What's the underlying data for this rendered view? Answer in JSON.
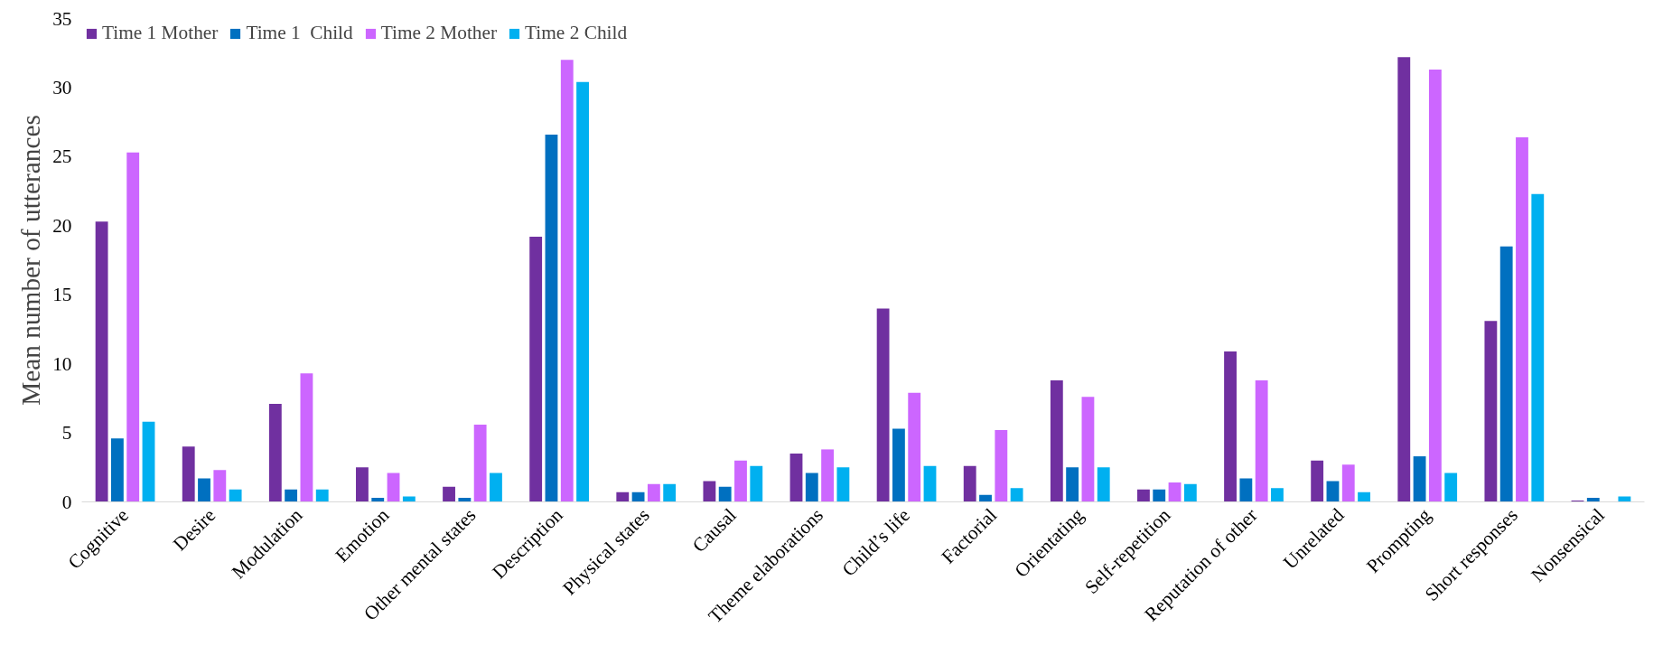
{
  "chart_data": {
    "type": "bar",
    "ylabel": "Mean number of utterances",
    "categories": [
      "Cognitive",
      "Desire",
      "Modulation",
      "Emotion",
      "Other mental states",
      "Description",
      "Physical states",
      "Causal",
      "Theme elaborations",
      "Child’s life",
      "Factorial",
      "Orientating",
      "Self-repetition",
      "Reputation of other",
      "Unrelated",
      "Prompting",
      "Short responses",
      "Nonsensical"
    ],
    "series": [
      {
        "name": "Time 1 Mother",
        "color": "#7030a0",
        "values": [
          20.3,
          4.0,
          7.1,
          2.5,
          1.1,
          19.2,
          0.7,
          1.5,
          3.5,
          14.0,
          2.6,
          8.8,
          0.9,
          10.9,
          3.0,
          32.2,
          13.1,
          0.1
        ]
      },
      {
        "name": "Time 1  Child",
        "color": "#0070c0",
        "values": [
          4.6,
          1.7,
          0.9,
          0.3,
          0.3,
          26.6,
          0.7,
          1.1,
          2.1,
          5.3,
          0.5,
          2.5,
          0.9,
          1.7,
          1.5,
          3.3,
          18.5,
          0.3
        ]
      },
      {
        "name": "Time 2 Mother",
        "color": "#cc66ff",
        "values": [
          25.3,
          2.3,
          9.3,
          2.1,
          5.6,
          32.0,
          1.3,
          3.0,
          3.8,
          7.9,
          5.2,
          7.6,
          1.4,
          8.8,
          2.7,
          31.3,
          26.4,
          0.0
        ]
      },
      {
        "name": "Time 2 Child",
        "color": "#00b0f0",
        "values": [
          5.8,
          0.9,
          0.9,
          0.4,
          2.1,
          30.4,
          1.3,
          2.6,
          2.5,
          2.6,
          1.0,
          2.5,
          1.3,
          1.0,
          0.7,
          2.1,
          22.3,
          0.4
        ]
      }
    ],
    "ylim": [
      0,
      35
    ],
    "yticks": [
      0,
      5,
      10,
      15,
      20,
      25,
      30,
      35
    ],
    "grid": false,
    "legend": "top left",
    "marker": "square"
  }
}
